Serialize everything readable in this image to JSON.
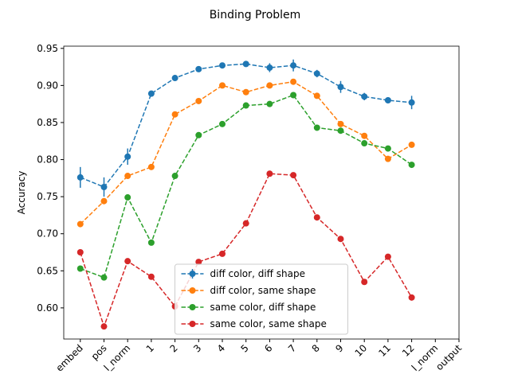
{
  "chart_data": {
    "type": "line",
    "title": "Binding Problem",
    "ylabel": "Accuracy",
    "categories": [
      "embed",
      "pos",
      "l_norm",
      "1",
      "2",
      "3",
      "4",
      "5",
      "6",
      "7",
      "8",
      "9",
      "10",
      "11",
      "12",
      "l_norm",
      "output"
    ],
    "series": [
      {
        "name": "diff color, diff shape",
        "color": "#1f77b4",
        "values": [
          0.776,
          0.763,
          0.804,
          0.889,
          0.91,
          0.922,
          0.927,
          0.929,
          0.924,
          0.927,
          0.916,
          0.898,
          0.885,
          0.88,
          0.877,
          null,
          null
        ],
        "errors": [
          0.014,
          0.013,
          0.011,
          0.004,
          0.003,
          0.003,
          0.004,
          0.003,
          0.006,
          0.008,
          0.005,
          0.008,
          0.005,
          0.004,
          0.009,
          null,
          null
        ]
      },
      {
        "name": "diff color, same shape",
        "color": "#ff7f0e",
        "values": [
          0.713,
          0.744,
          0.778,
          0.79,
          0.861,
          0.879,
          0.9,
          0.891,
          0.9,
          0.905,
          0.886,
          0.848,
          0.832,
          0.801,
          0.82,
          null,
          null
        ]
      },
      {
        "name": "same color, diff shape",
        "color": "#2ca02c",
        "values": [
          0.653,
          0.641,
          0.749,
          0.688,
          0.778,
          0.833,
          0.848,
          0.873,
          0.875,
          0.887,
          0.843,
          0.839,
          0.822,
          0.815,
          0.793,
          null,
          null
        ]
      },
      {
        "name": "same color, same shape",
        "color": "#d62728",
        "values": [
          0.675,
          0.575,
          0.663,
          0.642,
          0.602,
          0.662,
          0.673,
          0.714,
          0.781,
          0.779,
          0.722,
          0.693,
          0.635,
          0.669,
          0.614,
          null,
          null
        ]
      }
    ],
    "ylim": [
      0.558,
      0.953
    ],
    "yticks": [
      {
        "value": 0.6,
        "label": "0.60"
      },
      {
        "value": 0.65,
        "label": "0.65"
      },
      {
        "value": 0.7,
        "label": "0.70"
      },
      {
        "value": 0.75,
        "label": "0.75"
      },
      {
        "value": 0.8,
        "label": "0.80"
      },
      {
        "value": 0.85,
        "label": "0.85"
      },
      {
        "value": 0.9,
        "label": "0.90"
      },
      {
        "value": 0.95,
        "label": "0.95"
      }
    ],
    "legend": "lower center",
    "grid": false
  }
}
